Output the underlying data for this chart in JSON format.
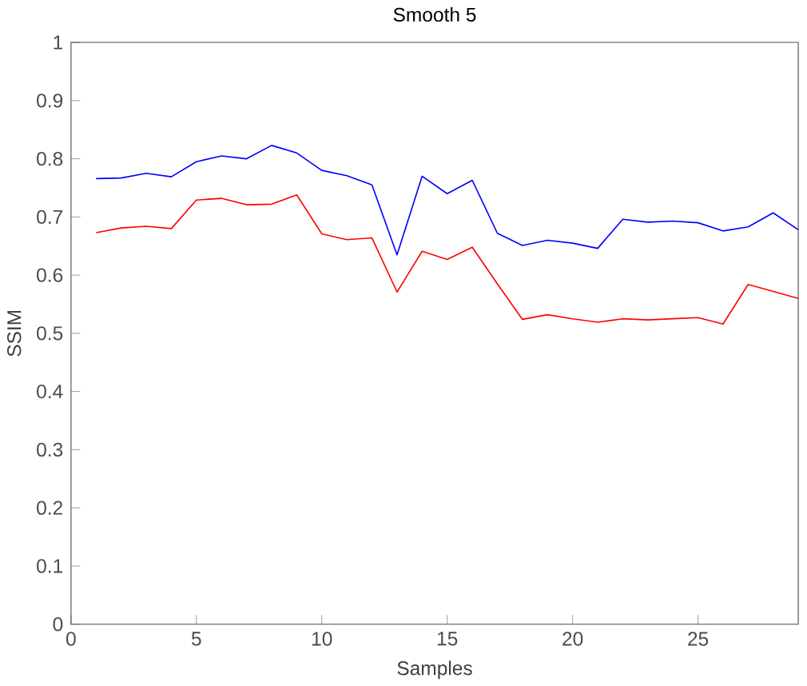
{
  "chart_data": {
    "type": "line",
    "title": "Smooth 5",
    "xlabel": "Samples",
    "ylabel": "SSIM",
    "x": [
      1,
      2,
      3,
      4,
      5,
      6,
      7,
      8,
      9,
      10,
      11,
      12,
      13,
      14,
      15,
      16,
      17,
      18,
      19,
      20,
      21,
      22,
      23,
      24,
      25,
      26,
      27,
      28,
      29
    ],
    "series": [
      {
        "color": "#0000ff",
        "values": [
          0.766,
          0.767,
          0.775,
          0.769,
          0.795,
          0.805,
          0.8,
          0.823,
          0.81,
          0.78,
          0.771,
          0.755,
          0.635,
          0.77,
          0.74,
          0.763,
          0.672,
          0.651,
          0.66,
          0.655,
          0.646,
          0.696,
          0.691,
          0.693,
          0.69,
          0.676,
          0.683,
          0.707,
          0.678
        ]
      },
      {
        "color": "#ff0000",
        "values": [
          0.673,
          0.681,
          0.684,
          0.68,
          0.729,
          0.732,
          0.721,
          0.722,
          0.738,
          0.671,
          0.661,
          0.664,
          0.571,
          0.641,
          0.627,
          0.648,
          0.585,
          0.524,
          0.532,
          0.525,
          0.519,
          0.525,
          0.523,
          0.525,
          0.527,
          0.516,
          0.584,
          0.572,
          0.56
        ]
      }
    ],
    "xlim": [
      0,
      29
    ],
    "xticks": [
      0,
      5,
      10,
      15,
      20,
      25
    ],
    "ylim": [
      0,
      1
    ],
    "yticks": [
      0,
      0.1,
      0.2,
      0.3,
      0.4,
      0.5,
      0.6,
      0.7,
      0.8,
      0.9,
      1
    ],
    "marker": "none",
    "line_style": "solid"
  }
}
